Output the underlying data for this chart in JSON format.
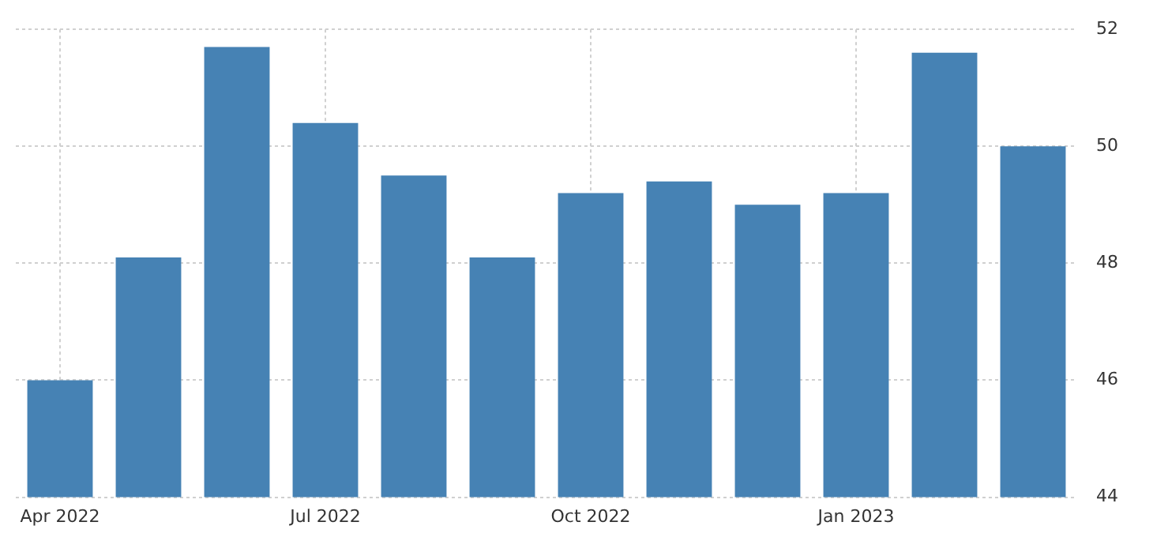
{
  "chart_data": {
    "type": "bar",
    "categories": [
      "Apr 2022",
      null,
      null,
      "Jul 2022",
      null,
      null,
      "Oct 2022",
      null,
      null,
      "Jan 2023",
      null,
      null
    ],
    "values": [
      46.0,
      48.1,
      51.7,
      50.4,
      49.5,
      48.1,
      49.2,
      49.4,
      49.0,
      49.2,
      51.6,
      50.0
    ],
    "color": "#4682b4",
    "ylim": [
      44,
      52
    ],
    "yticks": [
      44,
      46,
      48,
      50,
      52
    ],
    "grid": true
  }
}
